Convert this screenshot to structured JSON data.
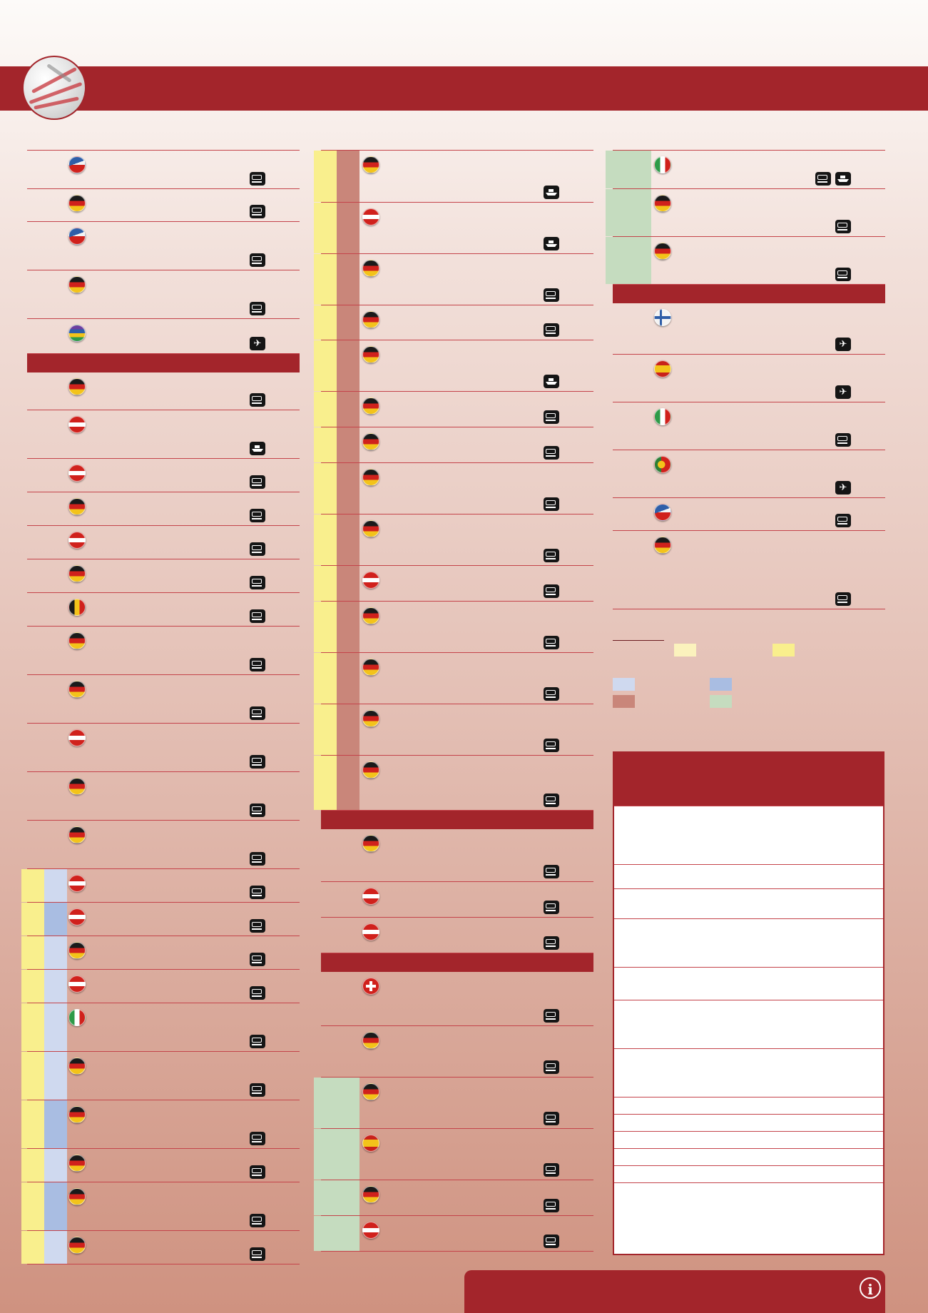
{
  "colors": {
    "brand_red": "#a3252b",
    "row_rule": "#c4434a",
    "band_yellow": "#f9ef8d",
    "band_light_yellow": "#fbf2bd",
    "band_salmon": "#c9867a",
    "band_blue_light": "#cfd9ef",
    "band_blue": "#a9bde2",
    "band_green": "#c5dcbf"
  },
  "columns": [
    {
      "rows": [
        {
          "flag": "czech-flag",
          "icons": [
            "bus"
          ]
        },
        {
          "flag": "germany-flag",
          "icons": [
            "bus"
          ]
        },
        {
          "flag": "czech-flag",
          "icons": [
            "bus"
          ]
        },
        {
          "flag": "germany-flag",
          "icons": [
            "bus"
          ]
        },
        {
          "flag": "multicolor-flag",
          "icons": [
            "plane"
          ]
        },
        {
          "section": true
        },
        {
          "flag": "germany-flag",
          "icons": [
            "bus"
          ]
        },
        {
          "flag": "austria-flag",
          "icons": [
            "ship"
          ]
        },
        {
          "flag": "austria-flag",
          "icons": [
            "bus"
          ]
        },
        {
          "flag": "germany-flag",
          "icons": [
            "bus"
          ]
        },
        {
          "flag": "austria-flag",
          "icons": [
            "bus"
          ]
        },
        {
          "flag": "germany-flag",
          "icons": [
            "bus"
          ]
        },
        {
          "flag": "belgium-flag",
          "icons": [
            "bus"
          ]
        },
        {
          "flag": "germany-flag",
          "icons": [
            "bus"
          ]
        },
        {
          "flag": "germany-flag",
          "icons": [
            "bus"
          ]
        },
        {
          "flag": "austria-flag",
          "icons": [
            "bus"
          ]
        },
        {
          "flag": "germany-flag",
          "icons": [
            "bus"
          ]
        },
        {
          "flag": "germany-flag",
          "icons": [
            "bus"
          ]
        },
        {
          "flag": "austria-flag",
          "icons": [
            "bus"
          ]
        },
        {
          "flag": "austria-flag",
          "icons": [
            "bus"
          ]
        },
        {
          "flag": "germany-flag",
          "icons": [
            "bus"
          ]
        },
        {
          "flag": "austria-flag",
          "icons": [
            "bus"
          ]
        },
        {
          "flag": "italy-flag",
          "icons": [
            "bus"
          ]
        },
        {
          "flag": "germany-flag",
          "icons": [
            "bus"
          ]
        },
        {
          "flag": "germany-flag",
          "icons": [
            "bus"
          ]
        },
        {
          "flag": "germany-flag",
          "icons": [
            "bus"
          ]
        },
        {
          "flag": "germany-flag",
          "icons": [
            "bus"
          ]
        },
        {
          "flag": "germany-flag",
          "icons": [
            "bus"
          ]
        }
      ]
    },
    {
      "rows": [
        {
          "flag": "germany-flag",
          "icons": [
            "ship"
          ]
        },
        {
          "flag": "austria-flag",
          "icons": [
            "ship"
          ]
        },
        {
          "flag": "germany-flag",
          "icons": [
            "bus"
          ]
        },
        {
          "flag": "germany-flag",
          "icons": [
            "bus"
          ]
        },
        {
          "flag": "germany-flag",
          "icons": [
            "ship"
          ]
        },
        {
          "flag": "germany-flag",
          "icons": [
            "bus"
          ]
        },
        {
          "flag": "germany-flag",
          "icons": [
            "bus"
          ]
        },
        {
          "flag": "germany-flag",
          "icons": [
            "bus"
          ]
        },
        {
          "flag": "germany-flag",
          "icons": [
            "bus"
          ]
        },
        {
          "flag": "austria-flag",
          "icons": [
            "bus"
          ]
        },
        {
          "flag": "germany-flag",
          "icons": [
            "bus"
          ]
        },
        {
          "flag": "germany-flag",
          "icons": [
            "bus"
          ]
        },
        {
          "flag": "germany-flag",
          "icons": [
            "bus"
          ]
        },
        {
          "flag": "germany-flag",
          "icons": [
            "bus"
          ]
        },
        {
          "section": true
        },
        {
          "flag": "germany-flag",
          "icons": [
            "bus"
          ]
        },
        {
          "flag": "austria-flag",
          "icons": [
            "bus"
          ]
        },
        {
          "flag": "austria-flag",
          "icons": [
            "bus"
          ]
        },
        {
          "section": true
        },
        {
          "flag": "switzerland-flag",
          "icons": [
            "bus"
          ]
        },
        {
          "flag": "germany-flag",
          "icons": [
            "bus"
          ]
        },
        {
          "flag": "germany-flag",
          "icons": [
            "bus"
          ]
        },
        {
          "flag": "spain-flag",
          "icons": [
            "bus"
          ]
        },
        {
          "flag": "germany-flag",
          "icons": [
            "bus"
          ]
        },
        {
          "flag": "austria-flag",
          "icons": [
            "bus"
          ]
        }
      ]
    },
    {
      "rows": [
        {
          "flag": "italy-flag",
          "icons": [
            "bus",
            "ship"
          ]
        },
        {
          "flag": "germany-flag",
          "icons": [
            "bus"
          ]
        },
        {
          "flag": "germany-flag",
          "icons": [
            "bus"
          ]
        },
        {
          "section": true
        },
        {
          "flag": "finland-flag",
          "icons": [
            "plane"
          ]
        },
        {
          "flag": "spain-flag",
          "icons": [
            "plane"
          ]
        },
        {
          "flag": "italy-flag",
          "icons": [
            "bus"
          ]
        },
        {
          "flag": "portugal-flag",
          "icons": [
            "plane"
          ]
        },
        {
          "flag": "czech-flag",
          "icons": [
            "bus"
          ]
        },
        {
          "flag": "germany-flag",
          "icons": [
            "bus"
          ]
        }
      ]
    }
  ],
  "legend": {
    "swatches": [
      "band_light_yellow",
      "band_yellow",
      "band_blue_light",
      "band_blue",
      "band_salmon",
      "band_green"
    ]
  },
  "info_table": {
    "rows": 14
  },
  "footer": {
    "icon": "info-icon"
  }
}
